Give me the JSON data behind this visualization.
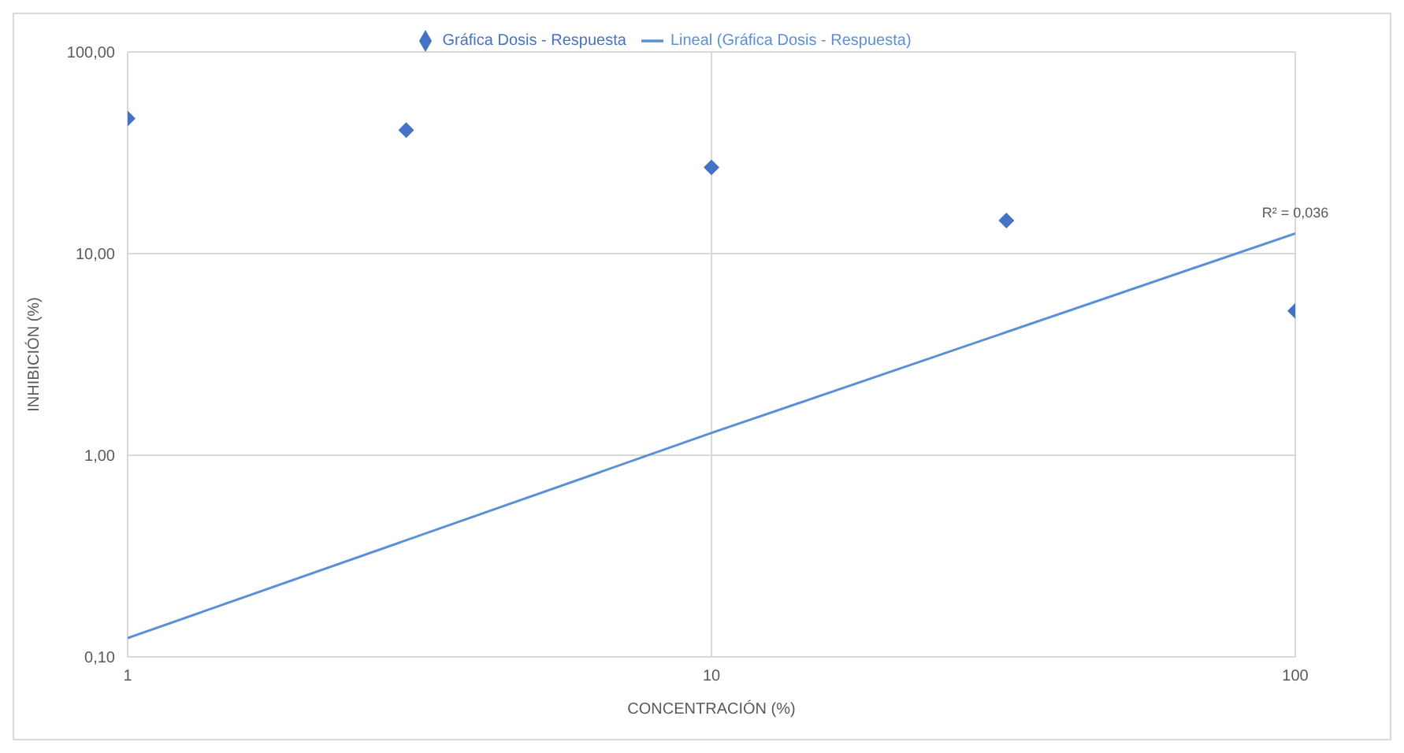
{
  "chart_data": {
    "type": "scatter",
    "xlabel": "CONCENTRACIÓN (%)",
    "ylabel": "INHIBICIÓN (%)",
    "log": "xy",
    "grid": true,
    "legend": "top",
    "marker": "diamond",
    "xlim": [
      1,
      100
    ],
    "xticks": [
      1,
      10,
      100
    ],
    "ylim": [
      0.1,
      100
    ],
    "yticks": [
      {
        "value": 0.1,
        "label": "0,10"
      },
      {
        "value": 1,
        "label": "1,00"
      },
      {
        "value": 10,
        "label": "10,00"
      },
      {
        "value": 100,
        "label": "100,00"
      }
    ],
    "series": [
      {
        "name": "Gráfica Dosis - Respuesta",
        "color": "#4472c4",
        "x": [
          1,
          3,
          10,
          32,
          100
        ],
        "values": [
          46.8,
          41,
          26.8,
          14.6,
          5.2
        ]
      },
      {
        "name": "Lineal (Gráfica Dosis - Respuesta)",
        "type": "line",
        "color": "#5b8fd6",
        "marker": "none",
        "line_style": "solid",
        "x": [
          1,
          10,
          100
        ],
        "values": [
          0.124,
          1.29,
          12.6
        ]
      }
    ],
    "annotations": [
      {
        "text": "R² = 0,036",
        "x": 100,
        "y": 12.6
      }
    ]
  }
}
